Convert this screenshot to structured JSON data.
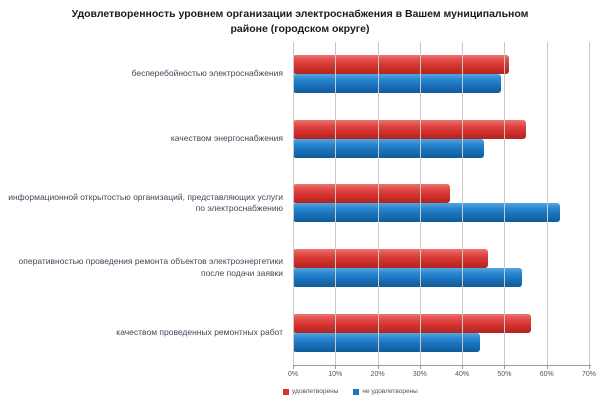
{
  "header": {
    "title_line1": "Удовлетворенность уровнем организации электроснабжения в Вашем муниципальном",
    "title_line2": "районе (городском округе)"
  },
  "chart_data": {
    "type": "bar",
    "orientation": "horizontal",
    "title": "Удовлетворенность уровнем организации электроснабжения в Вашем муниципальном районе (городском округе)",
    "categories": [
      "бесперебойностью электроснабжения",
      "качеством энергоснабжения",
      "информационной открытостью организаций, представляющих услуги по электроснабжению",
      "оперативностью проведения ремонта объектов электроэнергетики после подачи заявки",
      "качеством проведенных ремонтных работ"
    ],
    "series": [
      {
        "name": "удовлетворены",
        "color": "#d63431",
        "values": [
          51,
          55,
          37,
          46,
          56
        ]
      },
      {
        "name": "не удовлетворены",
        "color": "#1a74bf",
        "values": [
          49,
          45,
          63,
          54,
          44
        ]
      }
    ],
    "xlabel": "",
    "ylabel": "",
    "xlim": [
      0,
      70
    ],
    "x_ticks": [
      "0%",
      "10%",
      "20%",
      "30%",
      "40%",
      "50%",
      "60%",
      "70%"
    ],
    "grid": "vertical",
    "legend_position": "bottom-left",
    "value_unit": "%"
  },
  "colors": {
    "satisfied": "#d63431",
    "not_satisfied": "#1a74bf",
    "gridline": "#c9c9c9",
    "axis": "#9a9a9a",
    "category_text": "#454559",
    "tick_text": "#555555"
  }
}
